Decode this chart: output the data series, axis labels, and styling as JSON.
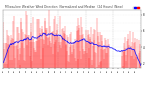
{
  "title": "Milwaukee Weather Wind Direction  Normalized and Median  (24 Hours) (New)",
  "title_fontsize": 2.2,
  "background_color": "#ffffff",
  "plot_bg_color": "#ffffff",
  "grid_color": "#bbbbbb",
  "num_points": 288,
  "y_min": 1.5,
  "y_max": 8.5,
  "data_color": "#ff0000",
  "median_color": "#0000ff",
  "legend_labels": [
    "blue",
    "red"
  ],
  "legend_colors": [
    "#0000ff",
    "#ff0000"
  ],
  "x_tick_fontsize": 1.5,
  "y_tick_fontsize": 1.8,
  "figsize": [
    1.6,
    0.87
  ],
  "dpi": 100
}
